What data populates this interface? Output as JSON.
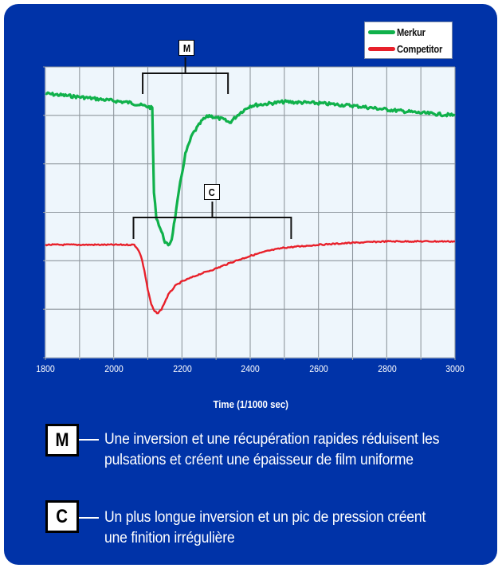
{
  "chart_data": {
    "type": "line",
    "title": "",
    "xlabel": "Time (1/1000 sec)",
    "ylabel": "",
    "xlim": [
      1800,
      3000
    ],
    "ylim": [
      0,
      6
    ],
    "x_ticks": [
      1800,
      2000,
      2200,
      2400,
      2600,
      2800,
      3000
    ],
    "x_minor_grid_step": 100,
    "y_grid_lines": 6,
    "grid": true,
    "legend_position": "top-right",
    "series": [
      {
        "name": "Merkur",
        "color": "#10b14b",
        "x": [
          1800,
          1900,
          2000,
          2050,
          2080,
          2100,
          2113,
          2118,
          2125,
          2140,
          2150,
          2160,
          2170,
          2180,
          2195,
          2210,
          2230,
          2260,
          2280,
          2300,
          2320,
          2340,
          2370,
          2400,
          2500,
          2600,
          2700,
          2800,
          2900,
          3000
        ],
        "y": [
          5.45,
          5.38,
          5.3,
          5.26,
          5.21,
          5.18,
          5.15,
          3.4,
          2.9,
          2.6,
          2.4,
          2.3,
          2.45,
          2.9,
          3.6,
          4.2,
          4.6,
          4.9,
          5.0,
          4.95,
          4.92,
          4.85,
          5.05,
          5.2,
          5.28,
          5.25,
          5.2,
          5.12,
          5.05,
          5.0
        ],
        "annotation": "M"
      },
      {
        "name": "Competitor",
        "color": "#e8202a",
        "x": [
          1800,
          1900,
          2000,
          2060,
          2070,
          2080,
          2090,
          2100,
          2110,
          2120,
          2130,
          2140,
          2150,
          2160,
          2180,
          2200,
          2250,
          2300,
          2350,
          2400,
          2450,
          2500,
          2600,
          2700,
          2800,
          2900,
          3000
        ],
        "y": [
          2.33,
          2.33,
          2.33,
          2.33,
          2.25,
          2.1,
          1.8,
          1.4,
          1.1,
          0.95,
          0.92,
          1.0,
          1.15,
          1.3,
          1.48,
          1.57,
          1.72,
          1.84,
          1.98,
          2.1,
          2.2,
          2.27,
          2.33,
          2.37,
          2.4,
          2.4,
          2.4
        ],
        "annotation": "C"
      }
    ],
    "annotations": [
      {
        "label": "M",
        "x_start": 2085,
        "x_end": 2335
      },
      {
        "label": "C",
        "x_start": 2058,
        "x_end": 2520
      }
    ]
  },
  "legend": {
    "items": [
      {
        "label": "Merkur",
        "color": "#10b14b"
      },
      {
        "label": "Competitor",
        "color": "#e8202a"
      }
    ]
  },
  "axis": {
    "x_tick_labels": [
      "1800",
      "2000",
      "2200",
      "2400",
      "2600",
      "2800",
      "3000"
    ],
    "x_title": "Time (1/1000 sec)"
  },
  "markers": {
    "m": "M",
    "c": "C"
  },
  "notes": [
    {
      "marker": "M",
      "text": "Une inversion et une récupération rapides réduisent les pulsations et créent une épaisseur de film uniforme"
    },
    {
      "marker": "C",
      "text": "Un plus longue inversion et un pic de pression créent une finition irrégulière"
    }
  ],
  "colors": {
    "panel_bg": "#0033a8",
    "plot_bg": "#eef6fc",
    "grid": "#8f979e"
  }
}
